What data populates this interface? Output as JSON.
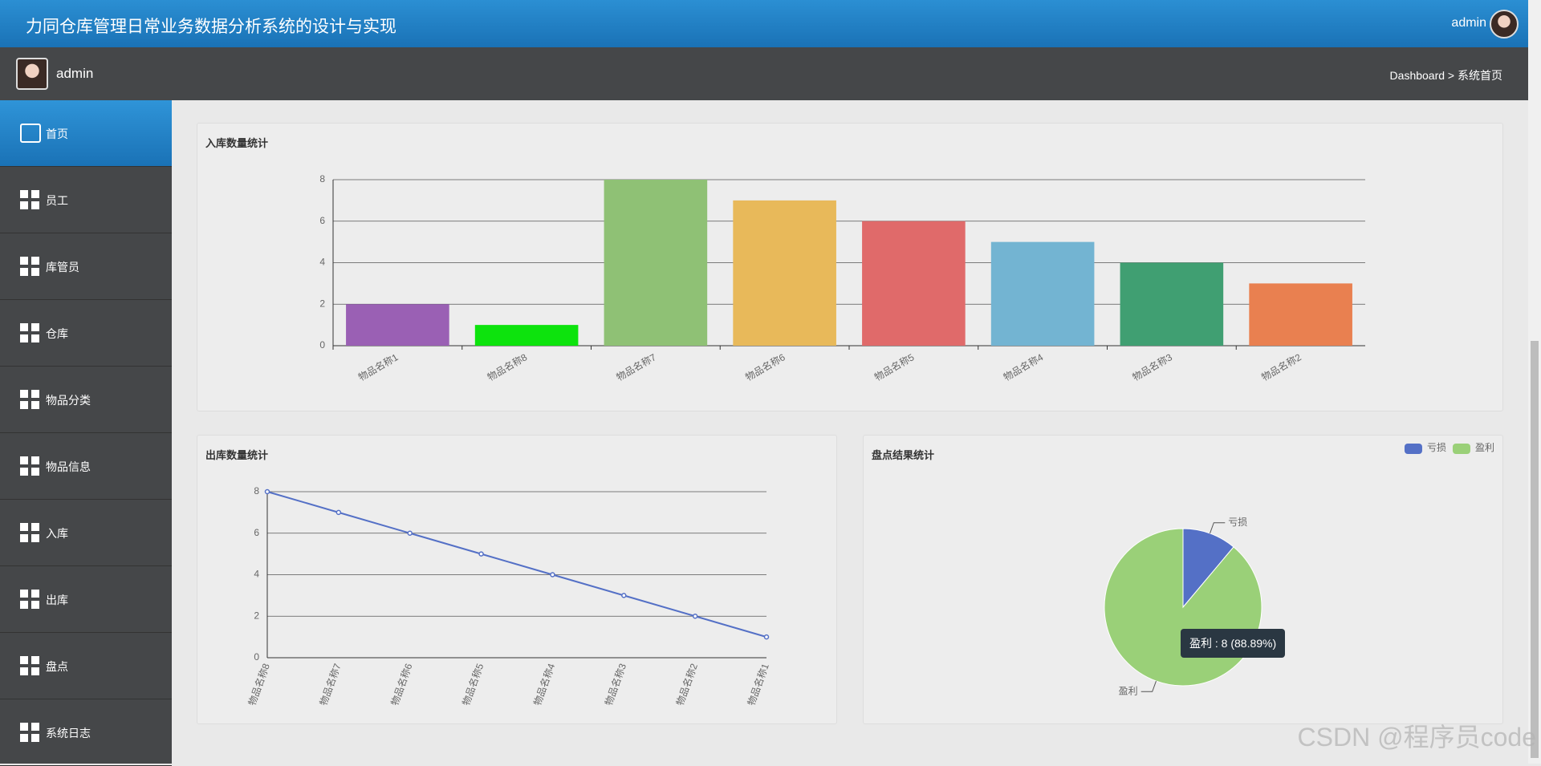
{
  "header": {
    "title": "力同仓库管理日常业务数据分析系统的设计与实现",
    "user": "admin"
  },
  "subbar": {
    "user": "admin",
    "breadcrumb": "Dashboard > 系统首页"
  },
  "sidebar": {
    "items": [
      "首页",
      "员工",
      "库管员",
      "仓库",
      "物品分类",
      "物品信息",
      "入库",
      "出库",
      "盘点",
      "系统日志"
    ]
  },
  "chart_data": [
    {
      "type": "bar",
      "title": "入库数量统计",
      "categories": [
        "物品名称1",
        "物品名称8",
        "物品名称7",
        "物品名称6",
        "物品名称5",
        "物品名称4",
        "物品名称3",
        "物品名称2"
      ],
      "values": [
        2,
        1,
        8,
        7,
        6,
        5,
        4,
        3
      ],
      "colors": [
        "#9a60b4",
        "#0de30d",
        "#8fc175",
        "#e8b95a",
        "#e06a6a",
        "#73b4d2",
        "#409f72",
        "#e98050"
      ],
      "ylim": [
        0,
        8
      ],
      "yticks": [
        0,
        2,
        4,
        6,
        8
      ],
      "grid": true
    },
    {
      "type": "line",
      "title": "出库数量统计",
      "categories": [
        "物品名称8",
        "物品名称7",
        "物品名称6",
        "物品名称5",
        "物品名称4",
        "物品名称3",
        "物品名称2",
        "物品名称1"
      ],
      "values": [
        8,
        7,
        6,
        5,
        4,
        3,
        2,
        1
      ],
      "color": "#5470c6",
      "ylim": [
        0,
        8
      ],
      "yticks": [
        0,
        2,
        4,
        6,
        8
      ],
      "grid": true
    },
    {
      "type": "pie",
      "title": "盘点结果统计",
      "categories": [
        "亏损",
        "盈利"
      ],
      "values": [
        1,
        8
      ],
      "colors": [
        "#5470c6",
        "#9ad078"
      ],
      "legend": "top-right",
      "tooltip": "盈利 : 8 (88.89%)"
    }
  ],
  "watermark": "CSDN @程序员code"
}
